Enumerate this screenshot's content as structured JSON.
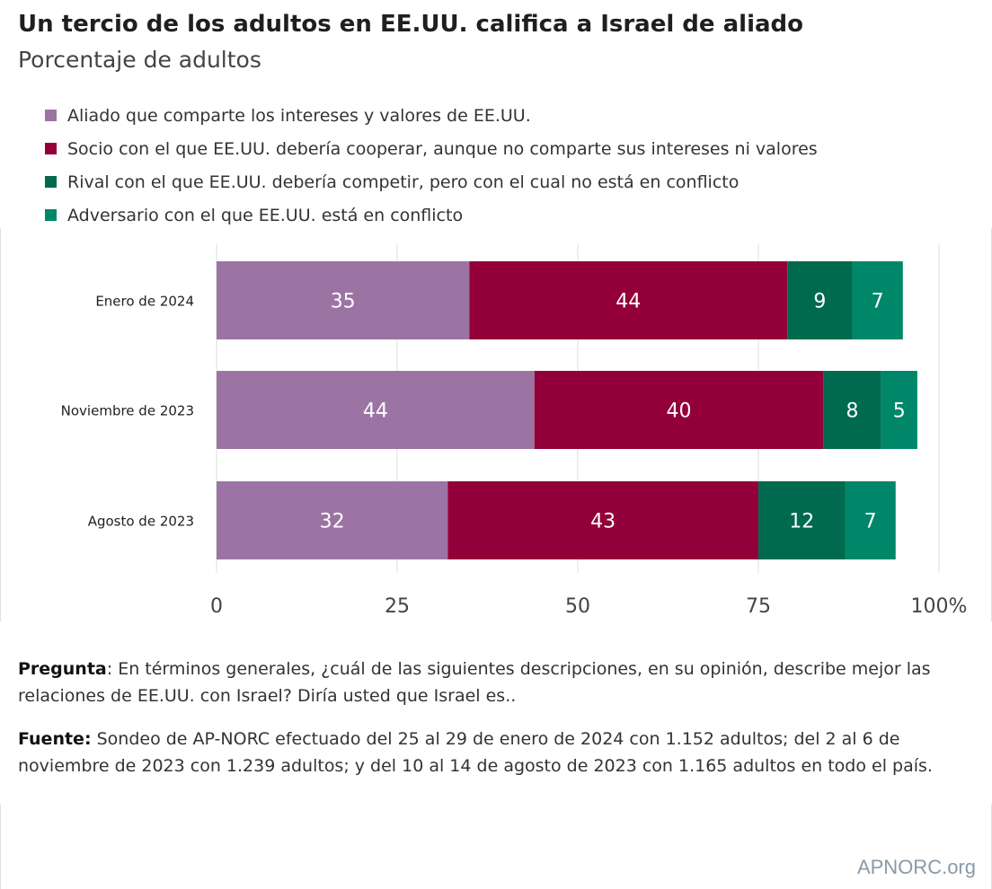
{
  "header": {
    "title": "Un tercio de los adultos en EE.UU. califica a Israel de aliado",
    "subtitle": "Porcentaje de adultos"
  },
  "chart_data": {
    "type": "bar",
    "orientation": "horizontal",
    "stacked": true,
    "categories": [
      "Enero de 2024",
      "Noviembre de 2023",
      "Agosto de 2023"
    ],
    "series": [
      {
        "name": "Aliado que comparte los intereses y valores de EE.UU.",
        "color": "#9c74a3",
        "values": [
          35,
          44,
          32
        ]
      },
      {
        "name": "Socio con el que EE.UU. debería cooperar, aunque no comparte sus intereses ni valores",
        "color": "#930039",
        "values": [
          44,
          40,
          43
        ]
      },
      {
        "name": "Rival con el que EE.UU. debería competir, pero con el cual no está en conflicto",
        "color": "#006a4e",
        "values": [
          9,
          8,
          12
        ]
      },
      {
        "name": "Adversario con el que EE.UU. está en conflicto",
        "color": "#00876a",
        "values": [
          7,
          5,
          7
        ]
      }
    ],
    "xlim": [
      0,
      100
    ],
    "xticks": [
      "0",
      "25",
      "50",
      "75",
      "100%"
    ],
    "grid": true,
    "legend": "top"
  },
  "notes": {
    "question_label": "Pregunta",
    "question_text": ": En términos generales, ¿cuál de las siguientes descripciones, en su opinión, describe mejor las relaciones de EE.UU. con Israel? Diría usted que Israel es..",
    "source_label": "Fuente:",
    "source_text": " Sondeo de AP-NORC efectuado del 25 al 29 de enero de 2024 con 1.152 adultos; del 2 al 6 de noviembre de 2023 con 1.239 adultos; y del 10 al 14 de agosto de 2023 con 1.165 adultos en todo el país."
  },
  "footer": {
    "logo": "APNORC.org"
  }
}
